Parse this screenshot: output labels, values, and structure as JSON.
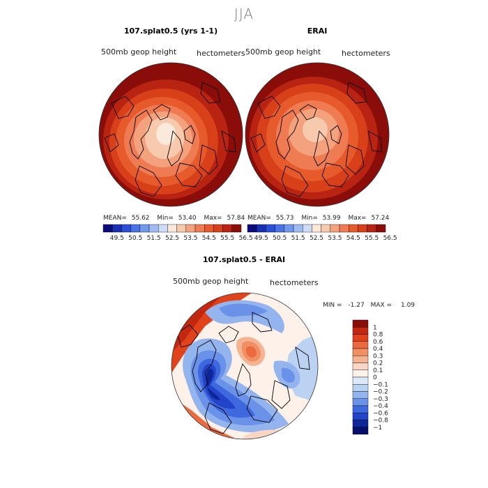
{
  "main_title": "JJA",
  "panels": [
    {
      "title": "107.splat0.5 (yrs 1-1)",
      "left_label": "500mb geop height",
      "right_label": "hectometers",
      "stats": {
        "mean_label": "MEAN=",
        "mean": "55.62",
        "min_label": "Min=",
        "min": "53.40",
        "max_label": "Max=",
        "max": "57.84"
      }
    },
    {
      "title": "ERAI",
      "left_label": "500mb geop height",
      "right_label": "hectometers",
      "stats": {
        "mean_label": "MEAN=",
        "mean": "55.73",
        "min_label": "Min=",
        "min": "53.99",
        "max_label": "Max=",
        "max": "57.24"
      }
    },
    {
      "title": "107.splat0.5 - ERAI",
      "left_label": "500mb geop height",
      "right_label": "hectometers",
      "stats": {
        "min_label": "MIN =",
        "min": "-1.27",
        "max_label": "MAX =",
        "max": "1.09"
      }
    }
  ],
  "colorbar_top": {
    "labels": [
      "49.5",
      "50.5",
      "51.5",
      "52.5",
      "53.5",
      "54.5",
      "55.5",
      "56.5"
    ],
    "colors": [
      "#0a0a7a",
      "#1a2fb4",
      "#2b4fd6",
      "#4a73e6",
      "#7099ec",
      "#9ebaf2",
      "#cfdcf8",
      "#fbe9dc",
      "#f7c9ad",
      "#f3a27d",
      "#ee7b52",
      "#e65a2c",
      "#d8401a",
      "#b82312",
      "#8a0d0a"
    ]
  },
  "colorbar_diff": {
    "labels": [
      "1",
      "0.8",
      "0.6",
      "0.4",
      "0.3",
      "0.2",
      "0.1",
      "0",
      "−0.1",
      "−0.2",
      "−0.3",
      "−0.4",
      "−0.6",
      "−0.8",
      "−1"
    ],
    "colors": [
      "#8a0d0a",
      "#c2280f",
      "#e0431c",
      "#ec6a40",
      "#f08e64",
      "#f5b391",
      "#fad6c4",
      "#fdf1e9",
      "#dde8f8",
      "#bcd2f3",
      "#94b4ee",
      "#6a92e8",
      "#3f68df",
      "#2244c8",
      "#0f2698",
      "#06106a"
    ]
  }
}
